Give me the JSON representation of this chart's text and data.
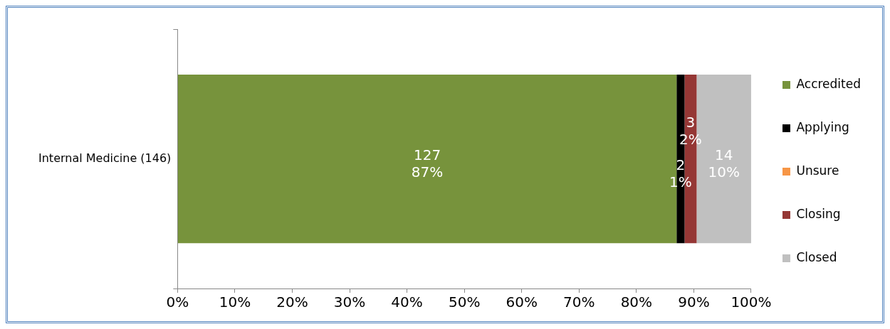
{
  "chart_data": {
    "type": "bar",
    "orientation": "horizontal",
    "stacked": true,
    "categories": [
      "Internal Medicine (146)"
    ],
    "series": [
      {
        "name": "Accredited",
        "color": "#77933c",
        "values": [
          87
        ],
        "value_labels": [
          "127\n87%"
        ]
      },
      {
        "name": "Applying",
        "color": "#000000",
        "values": [
          1.4
        ],
        "value_labels": [
          "2\n1%"
        ]
      },
      {
        "name": "Unsure",
        "color": "#f79646",
        "values": [
          0
        ],
        "value_labels": [
          null
        ]
      },
      {
        "name": "Closing",
        "color": "#953735",
        "values": [
          2.1
        ],
        "value_labels": [
          "3\n2%"
        ]
      },
      {
        "name": "Closed",
        "color": "#c0c0c0",
        "values": [
          9.5
        ],
        "value_labels": [
          "14\n10%"
        ]
      }
    ],
    "xlim": [
      0,
      100
    ],
    "xticks": [
      {
        "value": 0,
        "label": "0%"
      },
      {
        "value": 10,
        "label": "10%"
      },
      {
        "value": 20,
        "label": "20%"
      },
      {
        "value": 30,
        "label": "30%"
      },
      {
        "value": 40,
        "label": "40%"
      },
      {
        "value": 50,
        "label": "50%"
      },
      {
        "value": 60,
        "label": "60%"
      },
      {
        "value": 70,
        "label": "70%"
      },
      {
        "value": 80,
        "label": "80%"
      },
      {
        "value": 90,
        "label": "90%"
      },
      {
        "value": 100,
        "label": "100%"
      }
    ],
    "grid": false,
    "legend": "right"
  }
}
